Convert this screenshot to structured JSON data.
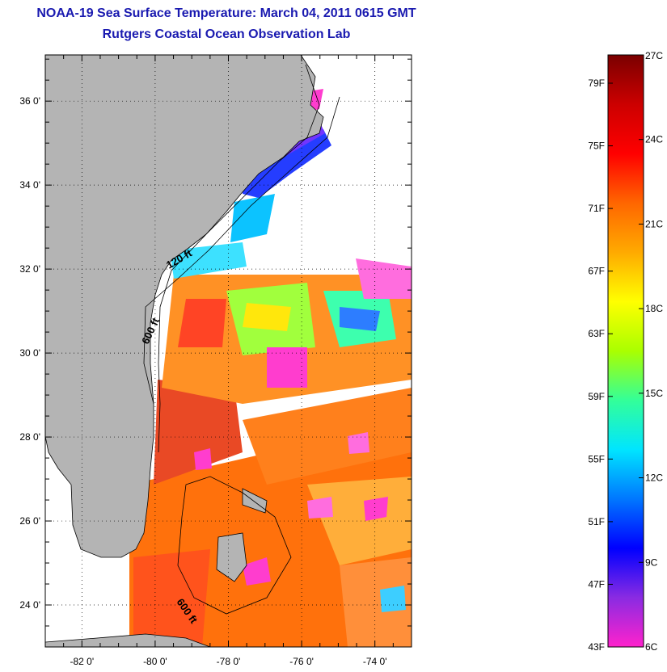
{
  "title": {
    "line1": "NOAA-19 Sea Surface Temperature:  March 04, 2011 0615 GMT",
    "line2": "Rutgers Coastal Ocean Observation Lab"
  },
  "map": {
    "lat_ticks": [
      {
        "label": "36 0'",
        "lat": 36
      },
      {
        "label": "34 0'",
        "lat": 34
      },
      {
        "label": "32 0'",
        "lat": 32
      },
      {
        "label": "30 0'",
        "lat": 30
      },
      {
        "label": "28 0'",
        "lat": 28
      },
      {
        "label": "26 0'",
        "lat": 26
      },
      {
        "label": "24 0'",
        "lat": 24
      }
    ],
    "lon_ticks": [
      {
        "label": "-82 0'",
        "lon": -82
      },
      {
        "label": "-80 0'",
        "lon": -80
      },
      {
        "label": "-78 0'",
        "lon": -78
      },
      {
        "label": "-76 0'",
        "lon": -76
      },
      {
        "label": "-74 0'",
        "lon": -74
      }
    ],
    "lat_range": [
      23.0,
      37.1
    ],
    "lon_range": [
      -83.0,
      -73.0
    ],
    "contour_labels": [
      "120 ft",
      "600 ft",
      "600 ft"
    ],
    "colors": {
      "land": "#b4b4b4",
      "background": "#ffffff"
    }
  },
  "colorbar": {
    "fahrenheit_labels": [
      "79F",
      "75F",
      "71F",
      "67F",
      "63F",
      "59F",
      "55F",
      "51F",
      "47F",
      "43F"
    ],
    "celsius_labels": [
      "27C",
      "24C",
      "21C",
      "18C",
      "15C",
      "12C",
      "9C",
      "6C"
    ],
    "colors": [
      "#ff22cc",
      "#8a2be2",
      "#0000ff",
      "#0077ff",
      "#00e5ff",
      "#33ff99",
      "#aaff00",
      "#ffff00",
      "#ffaa00",
      "#ff6600",
      "#ff0000",
      "#cc0000",
      "#7a0000"
    ]
  }
}
